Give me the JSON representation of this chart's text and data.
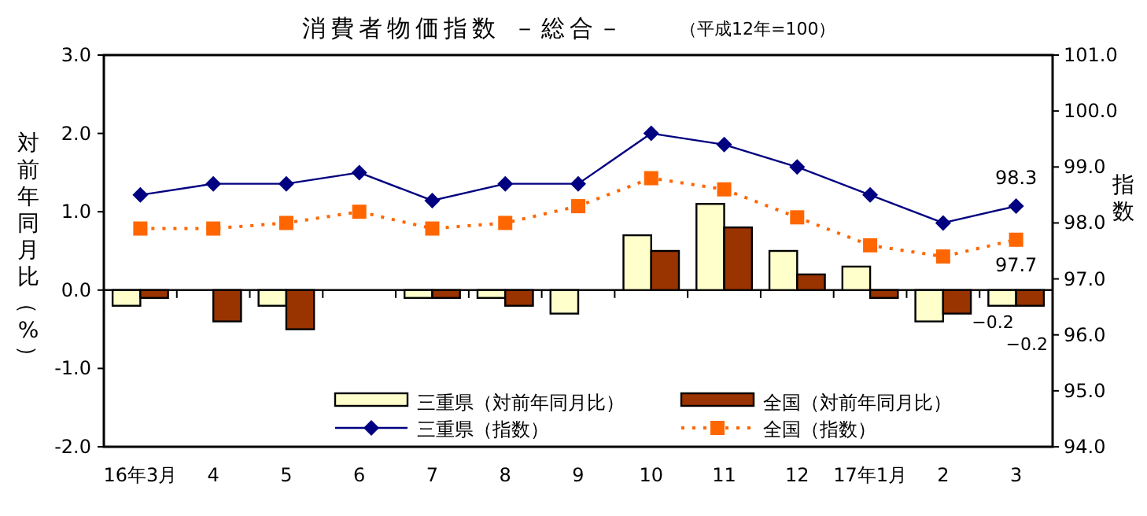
{
  "chart_data": {
    "type": "bar",
    "title": "消費者物価指数 －総合－",
    "subtitle": "（平成12年=100）",
    "ylabel": "対前年同月比（%）",
    "y2label": "指数",
    "categories": [
      "16年3月",
      "4",
      "5",
      "6",
      "7",
      "8",
      "9",
      "10",
      "11",
      "12",
      "17年1月",
      "2",
      "3"
    ],
    "series": [
      {
        "name": "三重県（対前年同月比）",
        "color": "#ffffcc",
        "values": [
          -0.2,
          0.0,
          -0.2,
          0.0,
          -0.1,
          -0.1,
          -0.3,
          0.7,
          1.1,
          0.5,
          0.3,
          -0.4,
          -0.2
        ],
        "value_labels": [
          null,
          null,
          null,
          null,
          null,
          null,
          null,
          null,
          null,
          null,
          null,
          null,
          "−0.2"
        ]
      },
      {
        "name": "全国（対前年同月比）",
        "color": "#993300",
        "values": [
          -0.1,
          -0.4,
          -0.5,
          0.0,
          -0.1,
          -0.2,
          0.0,
          0.5,
          0.8,
          0.2,
          -0.1,
          -0.3,
          -0.2
        ],
        "value_labels": [
          null,
          null,
          null,
          null,
          null,
          null,
          null,
          null,
          null,
          null,
          null,
          null,
          "−0.2"
        ]
      },
      {
        "name": "三重県（指数）",
        "type": "line",
        "axis": "y2",
        "color": "#000080",
        "marker": "diamond",
        "line_style": "solid",
        "values": [
          98.5,
          98.7,
          98.7,
          98.9,
          98.4,
          98.7,
          98.7,
          99.6,
          99.4,
          99.0,
          98.5,
          98.0,
          98.3
        ],
        "value_labels": [
          null,
          null,
          null,
          null,
          null,
          null,
          null,
          null,
          null,
          null,
          null,
          null,
          "98.3"
        ]
      },
      {
        "name": "全国（指数）",
        "type": "line",
        "axis": "y2",
        "color": "#ff6600",
        "marker": "square",
        "line_style": "dotted",
        "values": [
          97.9,
          97.9,
          98.0,
          98.2,
          97.9,
          98.0,
          98.3,
          98.8,
          98.6,
          98.1,
          97.6,
          97.4,
          97.7
        ],
        "value_labels": [
          null,
          null,
          null,
          null,
          null,
          null,
          null,
          null,
          null,
          null,
          null,
          null,
          "97.7"
        ]
      }
    ],
    "ylim": [
      -2.0,
      3.0
    ],
    "yticks": [
      {
        "value": -2,
        "label": "-2.0"
      },
      {
        "value": -1,
        "label": "-1.0"
      },
      {
        "value": 0,
        "label": "0.0"
      },
      {
        "value": 1,
        "label": "1.0"
      },
      {
        "value": 2,
        "label": "2.0"
      },
      {
        "value": 3,
        "label": "3.0"
      }
    ],
    "y2lim": [
      94.0,
      101.0
    ],
    "y2ticks": [
      {
        "value": 94,
        "label": "94.0"
      },
      {
        "value": 95,
        "label": "95.0"
      },
      {
        "value": 96,
        "label": "96.0"
      },
      {
        "value": 97,
        "label": "97.0"
      },
      {
        "value": 98,
        "label": "98.0"
      },
      {
        "value": 99,
        "label": "99.0"
      },
      {
        "value": 100,
        "label": "100.0"
      },
      {
        "value": 101,
        "label": "101.0"
      }
    ],
    "legend": "bottom"
  }
}
